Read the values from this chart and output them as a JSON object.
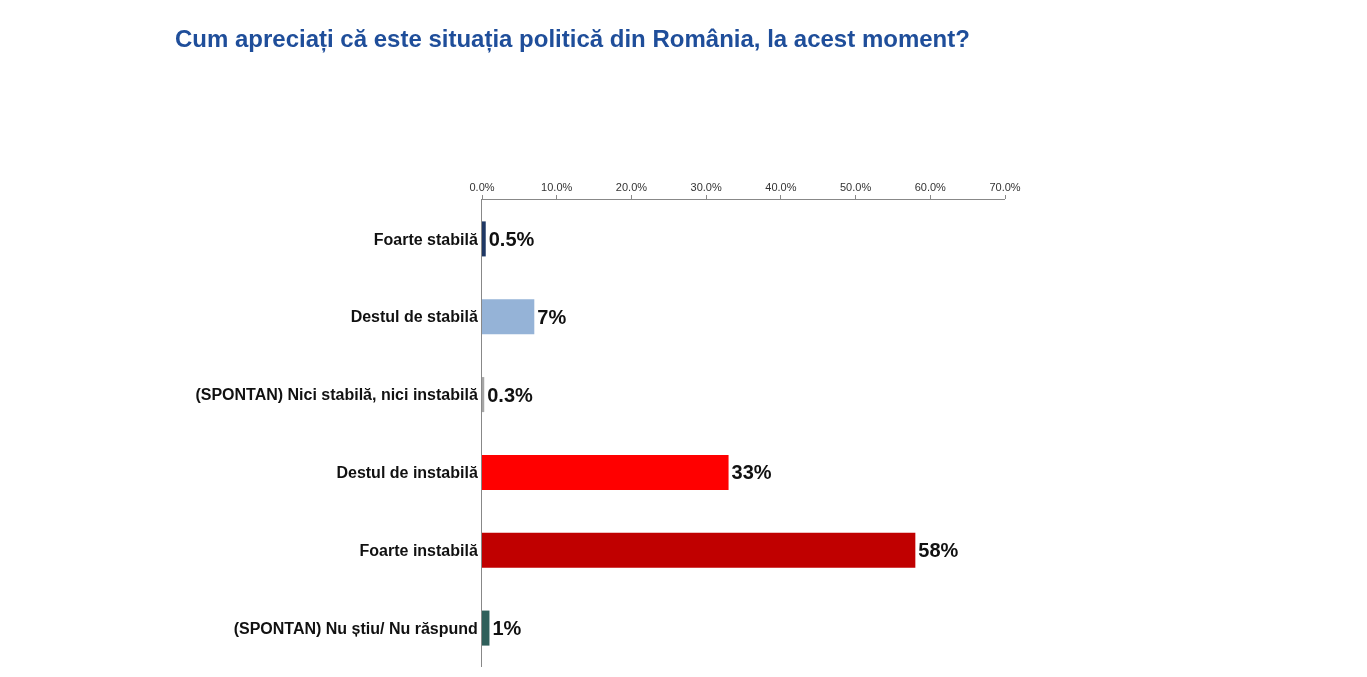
{
  "chart_data": {
    "type": "bar",
    "orientation": "horizontal",
    "title": "Cum apreciați că este situația politică din România, la acest moment?",
    "categories": [
      "Foarte stabilă",
      "Destul de stabilă",
      "(SPONTAN) Nici stabilă, nici instabilă",
      "Destul de instabilă",
      "Foarte instabilă",
      "(SPONTAN) Nu știu/ Nu răspund"
    ],
    "values": [
      0.5,
      7,
      0.3,
      33,
      58,
      1
    ],
    "value_labels": [
      "0.5%",
      "7%",
      "0.3%",
      "33%",
      "58%",
      "1%"
    ],
    "colors": [
      "#1f3864",
      "#95b3d7",
      "#a6a6a6",
      "#ff0000",
      "#c00000",
      "#2f5f5a"
    ],
    "xlim": [
      0,
      70
    ],
    "xticks": [
      {
        "value": 0,
        "label": "0.0%"
      },
      {
        "value": 10,
        "label": "10.0%"
      },
      {
        "value": 20,
        "label": "20.0%"
      },
      {
        "value": 30,
        "label": "30.0%"
      },
      {
        "value": 40,
        "label": "40.0%"
      },
      {
        "value": 50,
        "label": "50.0%"
      },
      {
        "value": 60,
        "label": "60.0%"
      },
      {
        "value": 70,
        "label": "70.0%"
      }
    ]
  }
}
